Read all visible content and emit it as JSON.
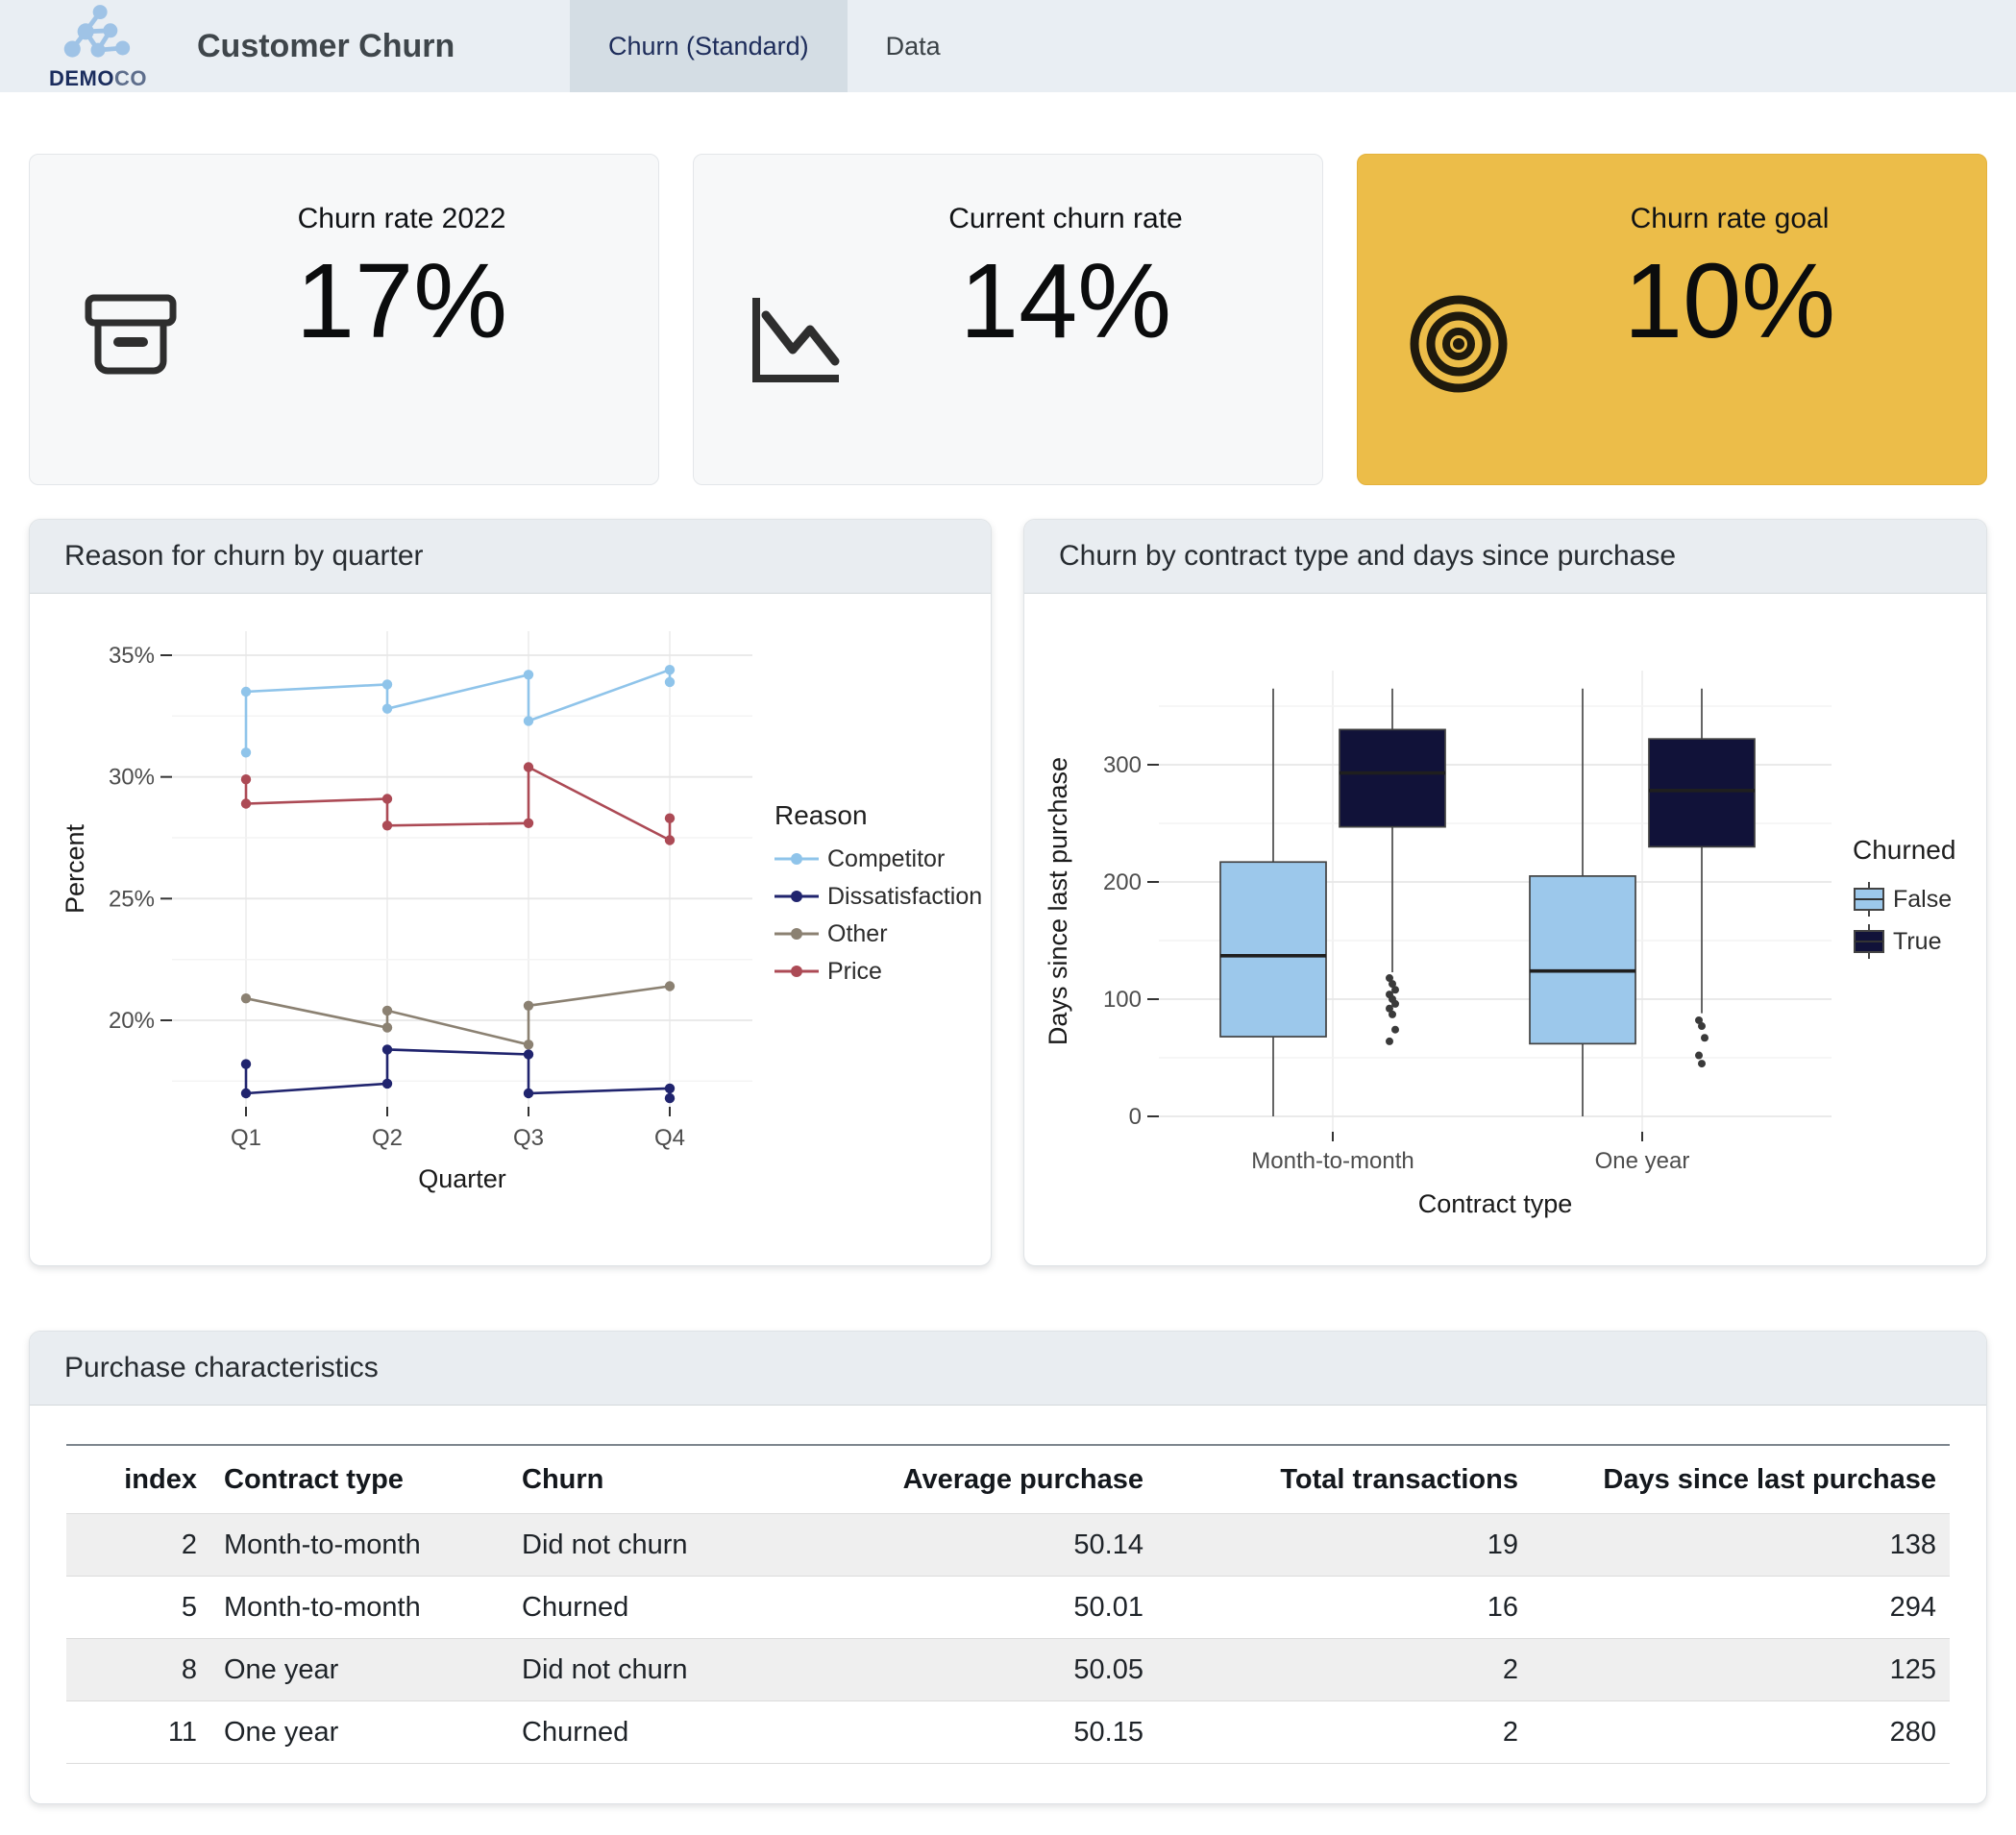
{
  "header": {
    "logo": {
      "bold": "DEMO",
      "light": "CO"
    },
    "title": "Customer Churn",
    "tabs": [
      {
        "label": "Churn (Standard)",
        "active": true
      },
      {
        "label": "Data",
        "active": false
      }
    ]
  },
  "kpis": [
    {
      "title": "Churn rate 2022",
      "value": "17%",
      "icon": "archive-box-icon"
    },
    {
      "title": "Current churn rate",
      "value": "14%",
      "icon": "chart-line-down-icon"
    },
    {
      "title": "Churn rate goal",
      "value": "10%",
      "icon": "target-icon",
      "bg": "#ecbd49"
    }
  ],
  "colors": {
    "header_bar": "#e9eef3",
    "active_tab": "#d4dde4",
    "accent_gold": "#ecbd49",
    "box_false": "#9cc8eb",
    "box_true": "#111239"
  },
  "chart_data": [
    {
      "type": "line",
      "title": "Reason for churn by quarter",
      "xlabel": "Quarter",
      "ylabel": "Percent",
      "x_categories": [
        "Q1",
        "Q2",
        "Q3",
        "Q4"
      ],
      "y_ticks": [
        {
          "value": 35,
          "label": "35%"
        },
        {
          "value": 30,
          "label": "30%"
        },
        {
          "value": 25,
          "label": "25%"
        },
        {
          "value": 20,
          "label": "20%"
        }
      ],
      "ylim": [
        16.2,
        36.0
      ],
      "grid": true,
      "legend_title": "Reason",
      "legend_position": "right",
      "series": [
        {
          "name": "Competitor",
          "color": "#8fc4ea",
          "points": [
            [
              1,
              31.0
            ],
            [
              1,
              33.5
            ],
            [
              2,
              33.8
            ],
            [
              2,
              32.8
            ],
            [
              3,
              34.2
            ],
            [
              3,
              32.3
            ],
            [
              4,
              34.4
            ],
            [
              4,
              33.9
            ]
          ]
        },
        {
          "name": "Dissatisfaction",
          "color": "#20246e",
          "points": [
            [
              1,
              18.2
            ],
            [
              1,
              17.0
            ],
            [
              2,
              17.4
            ],
            [
              2,
              18.8
            ],
            [
              3,
              18.6
            ],
            [
              3,
              17.0
            ],
            [
              4,
              17.2
            ],
            [
              4,
              16.8
            ]
          ]
        },
        {
          "name": "Other",
          "color": "#8b8172",
          "points": [
            [
              1,
              20.9
            ],
            [
              2,
              19.7
            ],
            [
              2,
              20.4
            ],
            [
              3,
              19.0
            ],
            [
              3,
              20.6
            ],
            [
              4,
              21.4
            ]
          ]
        },
        {
          "name": "Price",
          "color": "#ac4a55",
          "points": [
            [
              1,
              29.9
            ],
            [
              1,
              28.9
            ],
            [
              2,
              29.1
            ],
            [
              2,
              28.0
            ],
            [
              3,
              28.1
            ],
            [
              3,
              30.4
            ],
            [
              4,
              27.4
            ],
            [
              4,
              28.3
            ]
          ]
        }
      ]
    },
    {
      "type": "boxplot",
      "title": "Churn by contract type and days since purchase",
      "xlabel": "Contract type",
      "ylabel": "Days since last purchase",
      "categories": [
        "Month-to-month",
        "One year"
      ],
      "y_ticks": [
        {
          "value": 300,
          "label": "300"
        },
        {
          "value": 200,
          "label": "200"
        },
        {
          "value": 100,
          "label": "100"
        },
        {
          "value": 0,
          "label": "0"
        }
      ],
      "ylim": [
        0,
        380
      ],
      "grid": true,
      "legend_title": "Churned",
      "legend_position": "right",
      "groups": [
        {
          "name": "False",
          "color": "#9cc8eb",
          "boxes": [
            {
              "category": "Month-to-month",
              "whisker_low": 0,
              "q1": 68,
              "median": 137,
              "q3": 217,
              "whisker_high": 365,
              "outliers": []
            },
            {
              "category": "One year",
              "whisker_low": 0,
              "q1": 62,
              "median": 124,
              "q3": 205,
              "whisker_high": 365,
              "outliers": []
            }
          ]
        },
        {
          "name": "True",
          "color": "#111239",
          "boxes": [
            {
              "category": "Month-to-month",
              "whisker_low": 123,
              "q1": 247,
              "median": 293,
              "q3": 330,
              "whisker_high": 365,
              "outliers": [
                118,
                113,
                108,
                104,
                100,
                96,
                92,
                87,
                74,
                64
              ]
            },
            {
              "category": "One year",
              "whisker_low": 88,
              "q1": 230,
              "median": 278,
              "q3": 322,
              "whisker_high": 365,
              "outliers": [
                82,
                77,
                67,
                52,
                45
              ]
            }
          ]
        }
      ]
    }
  ],
  "table": {
    "section_title": "Purchase characteristics",
    "columns": [
      {
        "label": "index",
        "align": "right"
      },
      {
        "label": "Contract type",
        "align": "left"
      },
      {
        "label": "Churn",
        "align": "left"
      },
      {
        "label": "Average purchase",
        "align": "right"
      },
      {
        "label": "Total transactions",
        "align": "right"
      },
      {
        "label": "Days since last purchase",
        "align": "right"
      }
    ],
    "rows": [
      [
        "2",
        "Month-to-month",
        "Did not churn",
        "50.14",
        "19",
        "138"
      ],
      [
        "5",
        "Month-to-month",
        "Churned",
        "50.01",
        "16",
        "294"
      ],
      [
        "8",
        "One year",
        "Did not churn",
        "50.05",
        "2",
        "125"
      ],
      [
        "11",
        "One year",
        "Churned",
        "50.15",
        "2",
        "280"
      ]
    ]
  }
}
